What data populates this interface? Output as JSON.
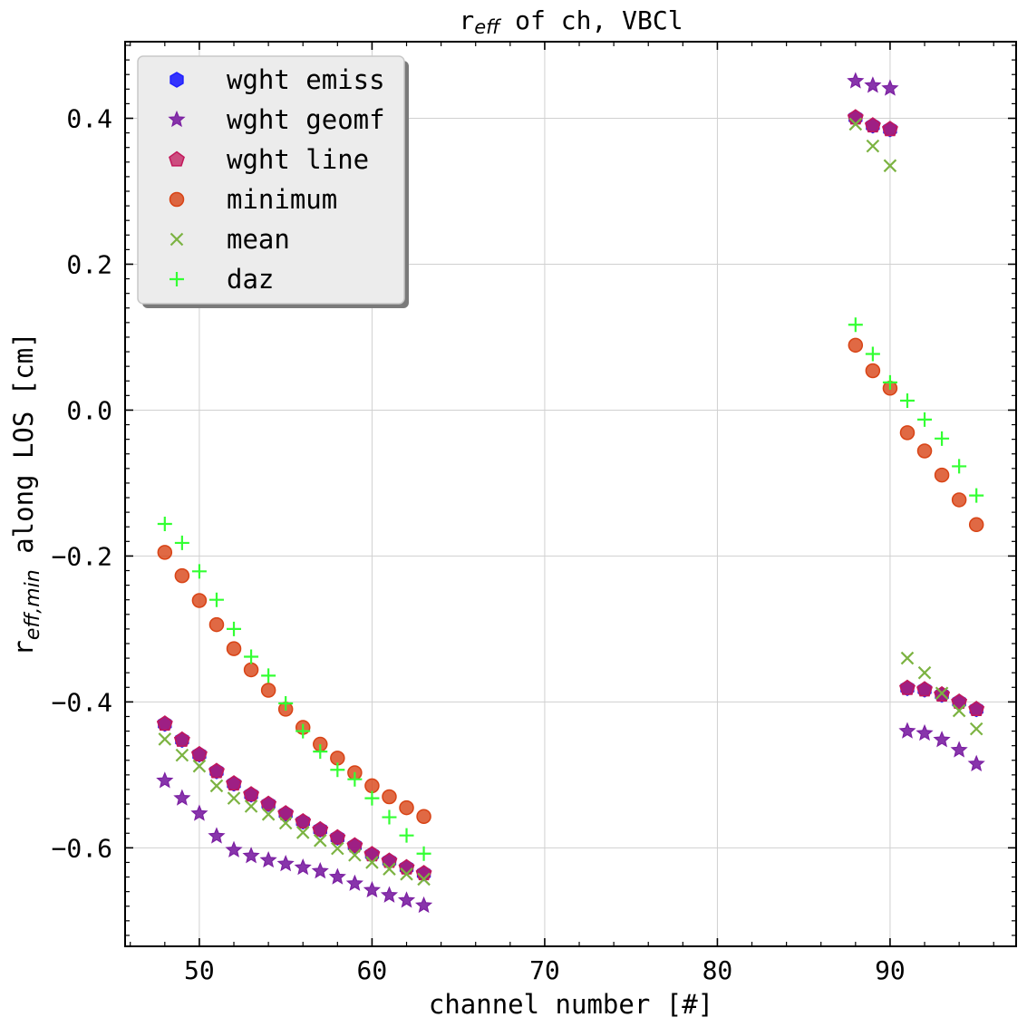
{
  "chart_data": {
    "type": "scatter",
    "title_main": "r",
    "title_sub": "eff",
    "title_rest": " of ch, VBCl",
    "xlabel": "channel number [#]",
    "ylabel_main": "r",
    "ylabel_sub": "eff,min",
    "ylabel_rest": " along LOS [cm]",
    "xlim": [
      45.7,
      97.3
    ],
    "ylim": [
      -0.735,
      0.505
    ],
    "xticks": [
      50,
      60,
      70,
      80,
      90
    ],
    "xtick_labels": [
      "50",
      "60",
      "70",
      "80",
      "90"
    ],
    "yticks": [
      -0.6,
      -0.4,
      -0.2,
      0.0,
      0.2,
      0.4
    ],
    "ytick_labels": [
      "−0.6",
      "−0.4",
      "−0.2",
      "0.0",
      "0.2",
      "0.4"
    ],
    "grid": true,
    "legend_position": "top-left",
    "x": [
      48,
      49,
      50,
      51,
      52,
      53,
      54,
      55,
      56,
      57,
      58,
      59,
      60,
      61,
      62,
      63,
      88,
      89,
      90,
      91,
      92,
      93,
      94,
      95
    ],
    "series": [
      {
        "name": "wght emiss",
        "marker": "hexagon",
        "color": "#1f1fff",
        "values": [
          -0.43,
          -0.452,
          -0.472,
          -0.495,
          -0.512,
          -0.527,
          -0.54,
          -0.553,
          -0.564,
          -0.575,
          -0.586,
          -0.597,
          -0.609,
          -0.618,
          -0.627,
          -0.635,
          0.401,
          0.39,
          0.385,
          -0.381,
          -0.383,
          -0.39,
          -0.4,
          -0.41
        ]
      },
      {
        "name": "wght geomf",
        "marker": "star",
        "color": "#7b1fa2",
        "values": [
          -0.508,
          -0.532,
          -0.553,
          -0.584,
          -0.603,
          -0.611,
          -0.617,
          -0.622,
          -0.627,
          -0.632,
          -0.64,
          -0.649,
          -0.658,
          -0.665,
          -0.672,
          -0.679,
          0.451,
          0.445,
          0.441,
          -0.44,
          -0.443,
          -0.452,
          -0.466,
          -0.485
        ]
      },
      {
        "name": "wght line",
        "marker": "pentagon",
        "color": "#c2185b",
        "values": [
          -0.43,
          -0.452,
          -0.472,
          -0.495,
          -0.512,
          -0.527,
          -0.54,
          -0.553,
          -0.564,
          -0.575,
          -0.586,
          -0.597,
          -0.609,
          -0.618,
          -0.627,
          -0.635,
          0.401,
          0.39,
          0.385,
          -0.381,
          -0.383,
          -0.39,
          -0.4,
          -0.41
        ]
      },
      {
        "name": "minimum",
        "marker": "circle",
        "color": "#d84315",
        "values": [
          -0.195,
          -0.227,
          -0.261,
          -0.294,
          -0.327,
          -0.356,
          -0.384,
          -0.41,
          -0.435,
          -0.458,
          -0.477,
          -0.497,
          -0.515,
          -0.53,
          -0.545,
          -0.557,
          0.089,
          0.054,
          0.03,
          -0.031,
          -0.056,
          -0.089,
          -0.123,
          -0.157
        ]
      },
      {
        "name": "mean",
        "marker": "x",
        "color": "#7cb342",
        "values": [
          -0.451,
          -0.473,
          -0.488,
          -0.515,
          -0.532,
          -0.543,
          -0.554,
          -0.566,
          -0.579,
          -0.59,
          -0.601,
          -0.61,
          -0.62,
          -0.629,
          -0.636,
          -0.643,
          0.392,
          0.362,
          0.335,
          -0.34,
          -0.36,
          -0.388,
          -0.412,
          -0.437
        ]
      },
      {
        "name": "daz",
        "marker": "plus",
        "color": "#33ff33",
        "values": [
          -0.156,
          -0.182,
          -0.221,
          -0.26,
          -0.3,
          -0.338,
          -0.364,
          -0.402,
          -0.44,
          -0.468,
          -0.493,
          -0.506,
          -0.532,
          -0.558,
          -0.583,
          -0.608,
          0.117,
          0.077,
          0.038,
          0.013,
          -0.013,
          -0.039,
          -0.077,
          -0.117
        ]
      }
    ]
  }
}
